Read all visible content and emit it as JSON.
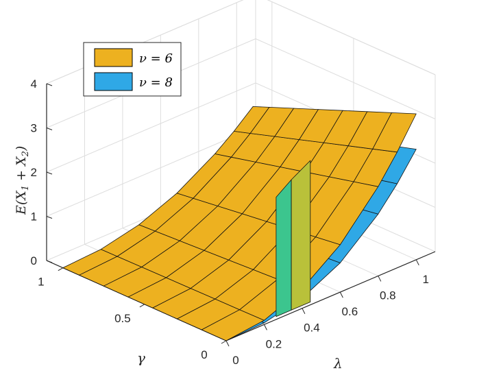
{
  "chart_data": {
    "type": "surface",
    "title": "",
    "xlabel": "λ",
    "ylabel": "γ",
    "zlabel_parts": [
      "E(X",
      "1",
      " + X",
      "2",
      ")"
    ],
    "xlim": [
      0,
      1.1
    ],
    "ylim": [
      0,
      1.1
    ],
    "zlim": [
      0,
      4
    ],
    "x_ticks": [
      0,
      0.2,
      0.4,
      0.6,
      0.8,
      1
    ],
    "x_tick_labels": [
      "0",
      "0.2",
      "0.4",
      "0.6",
      "0.8",
      "1"
    ],
    "y_ticks": [
      0,
      0.5,
      1
    ],
    "y_tick_labels": [
      "0",
      "0.5",
      "1"
    ],
    "z_ticks": [
      0,
      1,
      2,
      3,
      4
    ],
    "z_tick_labels": [
      "0",
      "1",
      "2",
      "3",
      "4"
    ],
    "grid": true,
    "legend_position": "top-left",
    "colors": {
      "nu6": "#EDB120",
      "nu8": "#2FA8E6"
    },
    "series": [
      {
        "name": "ν = 6",
        "color": "#EDB120"
      },
      {
        "name": "ν = 8",
        "color": "#2FA8E6"
      }
    ]
  }
}
